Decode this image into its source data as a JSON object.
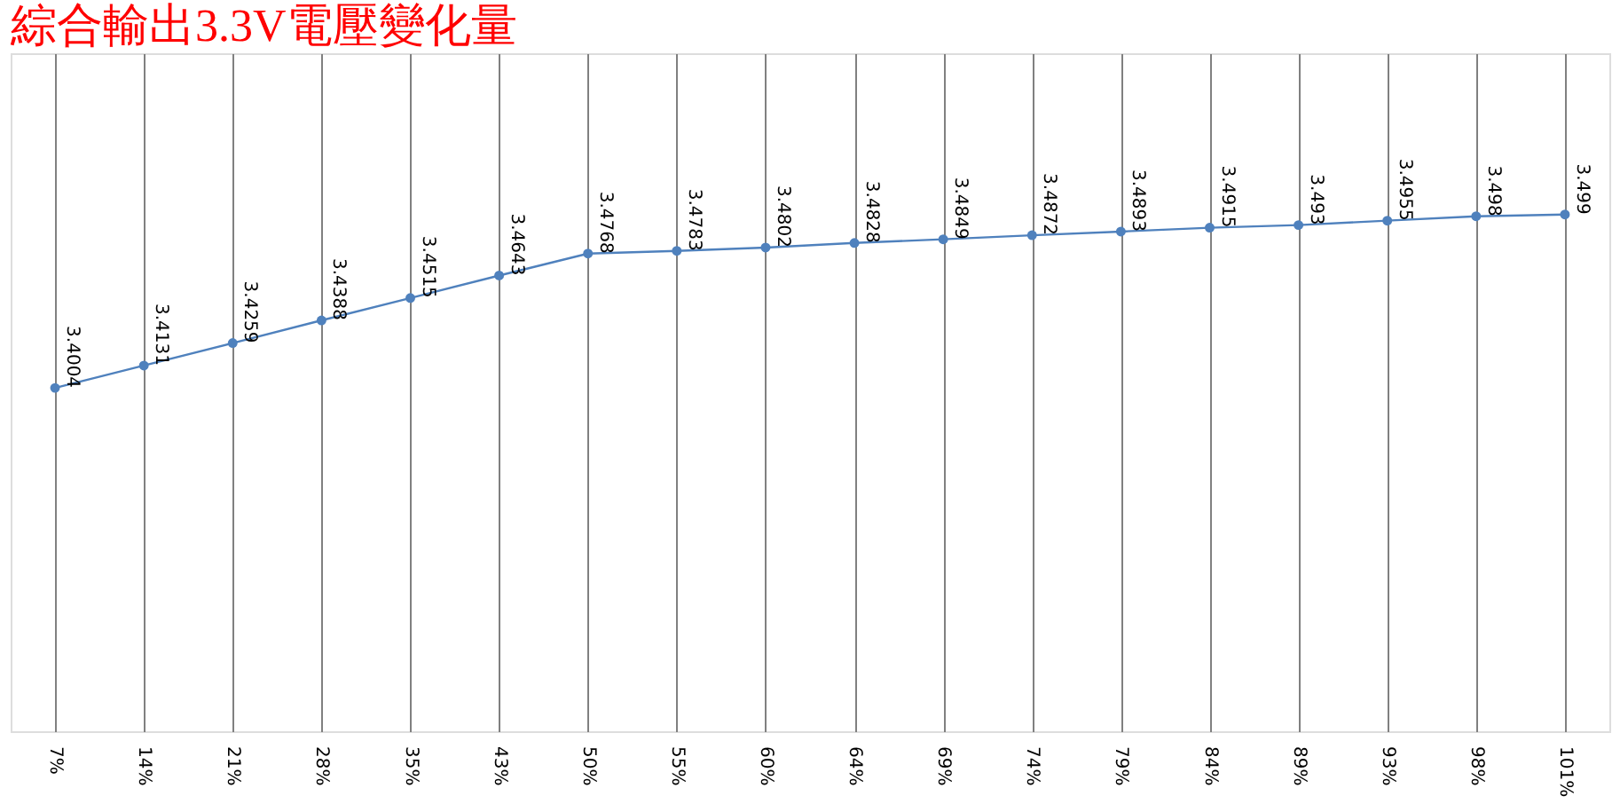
{
  "chart_data": {
    "type": "line",
    "title": "綜合輸出3.3V電壓變化量",
    "categories": [
      "7%",
      "14%",
      "21%",
      "28%",
      "35%",
      "43%",
      "50%",
      "55%",
      "60%",
      "64%",
      "69%",
      "74%",
      "79%",
      "84%",
      "89%",
      "93%",
      "98%",
      "101%"
    ],
    "series": [
      {
        "color": "#4f81bd",
        "values": [
          3.4004,
          3.4131,
          3.4259,
          3.4388,
          3.4515,
          3.4643,
          3.4768,
          3.4783,
          3.4802,
          3.4828,
          3.4849,
          3.4872,
          3.4893,
          3.4915,
          3.493,
          3.4955,
          3.498,
          3.499
        ]
      }
    ],
    "data_labels": true,
    "grid": "x",
    "marker": "circle",
    "tick_labels": "x"
  }
}
